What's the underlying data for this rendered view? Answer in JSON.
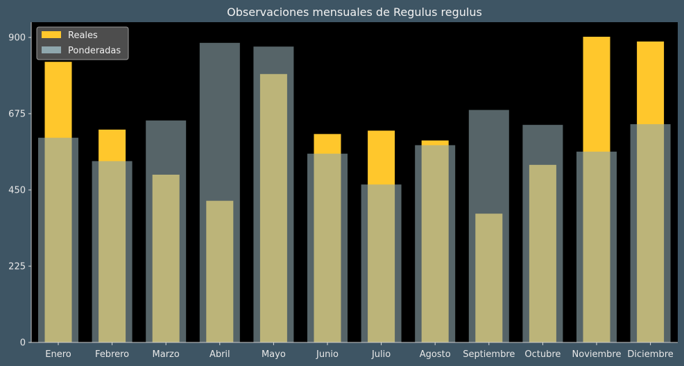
{
  "chart_data": {
    "type": "bar",
    "title": "Observaciones mensuales de Regulus regulus",
    "xlabel": "",
    "ylabel": "",
    "categories": [
      "Enero",
      "Febrero",
      "Marzo",
      "Abril",
      "Mayo",
      "Junio",
      "Julio",
      "Agosto",
      "Septiembre",
      "Octubre",
      "Noviembre",
      "Diciembre"
    ],
    "series": [
      {
        "name": "Reales",
        "color": "#ffc72c",
        "values": [
          828,
          628,
          495,
          418,
          792,
          615,
          625,
          596,
          380,
          524,
          902,
          888
        ]
      },
      {
        "name": "Ponderadas",
        "color": "#8fa7ad",
        "values": [
          604,
          535,
          655,
          884,
          873,
          557,
          466,
          582,
          686,
          642,
          563,
          644
        ]
      }
    ],
    "ylim": [
      0,
      945
    ],
    "yticks": [
      0,
      225,
      450,
      675,
      900
    ],
    "grid": false,
    "legend": "top-left",
    "background": "#3e5564",
    "plot_background": "#000000"
  }
}
